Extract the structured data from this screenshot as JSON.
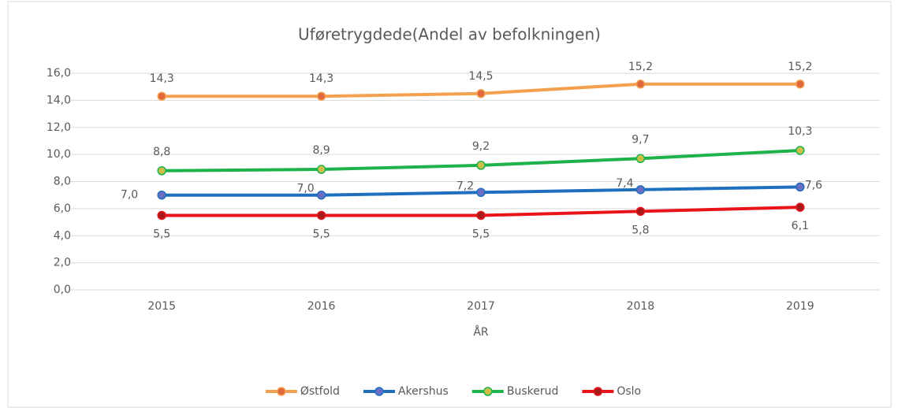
{
  "chart_data": {
    "type": "line",
    "title": "Uføretrygdede(Andel av befolkningen)",
    "x_label": "ÅR",
    "categories": [
      "2015",
      "2016",
      "2017",
      "2018",
      "2019"
    ],
    "series": [
      {
        "name": "Østfold",
        "color": "#f4a14f",
        "marker_color": "#e0683e",
        "values": [
          14.3,
          14.3,
          14.5,
          15.2,
          15.2
        ],
        "value_labels": [
          "14,3",
          "14,3",
          "14,5",
          "15,2",
          "15,2"
        ]
      },
      {
        "name": "Akershus",
        "color": "#1f6fbf",
        "marker_color": "#6a6fc4",
        "values": [
          7.0,
          7.0,
          7.2,
          7.4,
          7.6
        ],
        "value_labels": [
          "7,0",
          "7,0",
          "7,2",
          "7,4",
          "7,6"
        ]
      },
      {
        "name": "Buskerud",
        "color": "#1db34a",
        "marker_color": "#cfbf4a",
        "values": [
          8.8,
          8.9,
          9.2,
          9.7,
          10.3
        ],
        "value_labels": [
          "8,8",
          "8,9",
          "9,2",
          "9,7",
          "10,3"
        ]
      },
      {
        "name": "Oslo",
        "color": "#e8141a",
        "marker_color": "#a81a1a",
        "values": [
          5.5,
          5.5,
          5.5,
          5.8,
          6.1
        ],
        "value_labels": [
          "5,5",
          "5,5",
          "5,5",
          "5,8",
          "6,1"
        ]
      }
    ],
    "ylim": [
      0,
      16
    ],
    "yticks": [
      {
        "value": 0,
        "label": "0,0"
      },
      {
        "value": 2,
        "label": "2,0"
      },
      {
        "value": 4,
        "label": "4,0"
      },
      {
        "value": 6,
        "label": "6,0"
      },
      {
        "value": 8,
        "label": "8,0"
      },
      {
        "value": 10,
        "label": "10,0"
      },
      {
        "value": 12,
        "label": "12,0"
      },
      {
        "value": 14,
        "label": "14,0"
      },
      {
        "value": 16,
        "label": "16,0"
      }
    ],
    "grid": true,
    "legend": "bottom"
  }
}
